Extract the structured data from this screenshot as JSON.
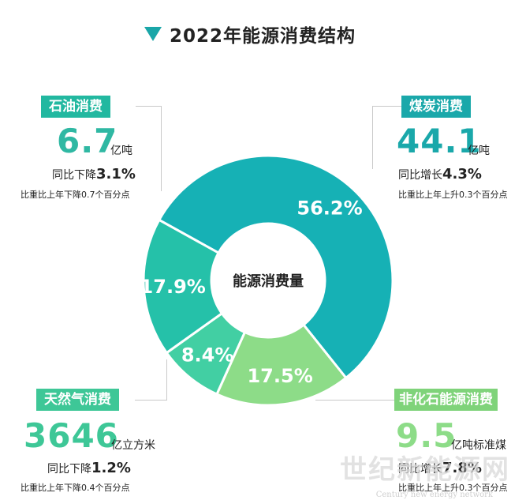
{
  "header": {
    "title": "2022年能源消费结构"
  },
  "center_label": "能源消费量",
  "colors": {
    "coal": "#16b1b5",
    "oil": "#25c1a9",
    "gas": "#42cfa3",
    "nonfossil": "#8ddc88",
    "badge_coal": "#1aa8aa",
    "badge_oil": "#22b8a0",
    "badge_gas": "#3ec797",
    "badge_nonfossil": "#7fd37a"
  },
  "chart_data": {
    "type": "pie",
    "title": "2022年能源消费结构",
    "categories": [
      "煤炭消费",
      "非化石能源消费",
      "天然气消费",
      "石油消费"
    ],
    "values": [
      56.2,
      17.5,
      8.4,
      17.9
    ],
    "labels": [
      "56.2%",
      "17.5%",
      "8.4%",
      "17.9%"
    ]
  },
  "cards": {
    "oil": {
      "label": "石油消费",
      "value": "6.7",
      "unit": "亿吨",
      "yoy_prefix": "同比下降",
      "yoy_pct": "3.1%",
      "note": "比重比上年下降0.7个百分点"
    },
    "coal": {
      "label": "煤炭消费",
      "value": "44.1",
      "unit": "亿吨",
      "yoy_prefix": "同比增长",
      "yoy_pct": "4.3%",
      "note": "比重比上年上升0.3个百分点"
    },
    "gas": {
      "label": "天然气消费",
      "value": "3646",
      "unit": "亿立方米",
      "yoy_prefix": "同比下降",
      "yoy_pct": "1.2%",
      "note": "比重比上年下降0.4个百分点"
    },
    "nonfossil": {
      "label": "非化石能源消费",
      "value": "9.5",
      "unit": "亿吨标准煤",
      "yoy_prefix": "同比增长",
      "yoy_pct": "7.8%",
      "note": "比重比上年上升0.3个百分点"
    }
  },
  "watermark": {
    "main": "世纪新能源网",
    "sub": "Century new energy network"
  }
}
